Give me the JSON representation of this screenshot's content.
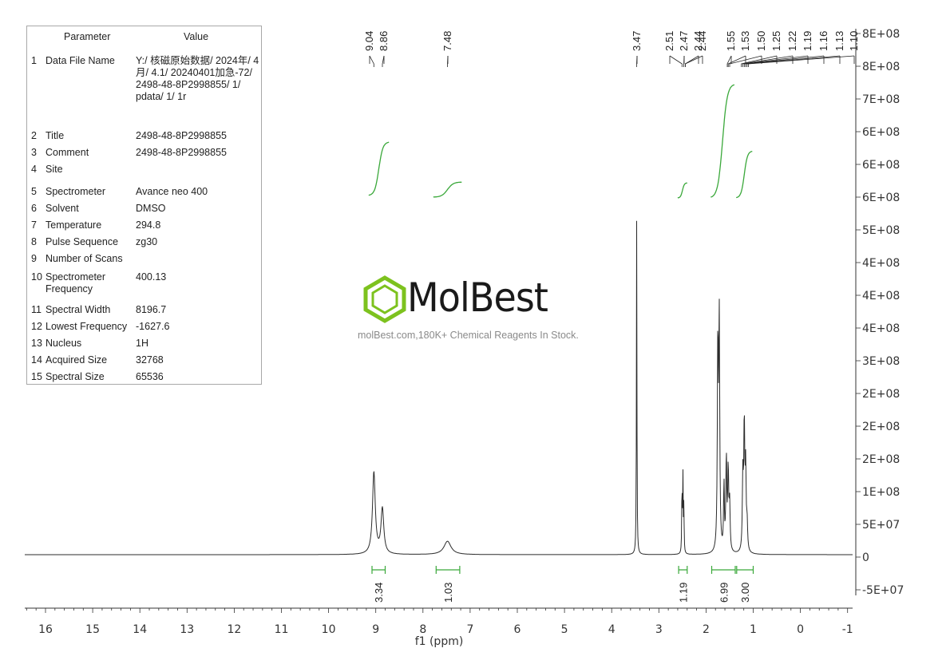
{
  "parameters": {
    "header_param": "Parameter",
    "header_value": "Value",
    "rows": [
      {
        "num": "1",
        "name": "Data File Name",
        "value": "Y:/ 核磁原始数据/ 2024年/ 4月/ 4.1/ 20240401加急-72/ 2498-48-8P2998855/ 1/ pdata/ 1/ 1r"
      },
      {
        "num": "2",
        "name": "Title",
        "value": "2498-48-8P2998855"
      },
      {
        "num": "3",
        "name": "Comment",
        "value": "2498-48-8P2998855"
      },
      {
        "num": "4",
        "name": "Site",
        "value": ""
      },
      {
        "num": "5",
        "name": "Spectrometer",
        "value": "Avance neo 400"
      },
      {
        "num": "6",
        "name": "Solvent",
        "value": "DMSO"
      },
      {
        "num": "7",
        "name": "Temperature",
        "value": "294.8"
      },
      {
        "num": "8",
        "name": "Pulse Sequence",
        "value": "zg30"
      },
      {
        "num": "9",
        "name": "Number of Scans",
        "value": ""
      },
      {
        "num": "10",
        "name": "Spectrometer Frequency",
        "value": "400.13"
      },
      {
        "num": "11",
        "name": "Spectral Width",
        "value": "8196.7"
      },
      {
        "num": "12",
        "name": "Lowest Frequency",
        "value": "-1627.6"
      },
      {
        "num": "13",
        "name": "Nucleus",
        "value": "1H"
      },
      {
        "num": "14",
        "name": "Acquired Size",
        "value": "32768"
      },
      {
        "num": "15",
        "name": "Spectral Size",
        "value": "65536"
      }
    ]
  },
  "watermark": {
    "brand": "MolBest",
    "tagline": "molBest.com,180K+ Chemical Reagents In Stock."
  },
  "colors": {
    "spectrum": "#2b2b2b",
    "integral": "#3aa83a",
    "axis": "#333333",
    "logo_green": "#7dc21e"
  },
  "chart_data": {
    "type": "line",
    "xlabel": "f1 (ppm)",
    "ylabel": "",
    "x_reversed": true,
    "xlim": [
      16.5,
      -1.0
    ],
    "x_ticks": [
      16,
      15,
      14,
      13,
      12,
      11,
      10,
      9,
      8,
      7,
      6,
      5,
      4,
      3,
      2,
      1,
      0,
      -1
    ],
    "y_ticks": [
      "8E+08",
      "8E+08",
      "7E+08",
      "6E+08",
      "6E+08",
      "6E+08",
      "5E+08",
      "4E+08",
      "4E+08",
      "4E+08",
      "3E+08",
      "2E+08",
      "2E+08",
      "2E+08",
      "1E+08",
      "5E+07",
      "0",
      "-5E+07"
    ],
    "peak_labels": [
      "9.04",
      "8.86",
      "7.48",
      "3.47",
      "2.51",
      "2.47",
      "2.44",
      "2.44",
      "1.55",
      "1.53",
      "1.50",
      "1.25",
      "1.22",
      "1.19",
      "1.16",
      "1.13",
      "1.10"
    ],
    "integrals": [
      {
        "from": 9.08,
        "to": 8.8,
        "value": "3.34"
      },
      {
        "from": 7.72,
        "to": 7.22,
        "value": "1.03"
      },
      {
        "from": 2.58,
        "to": 2.4,
        "value": "1.19"
      },
      {
        "from": 1.88,
        "to": 1.38,
        "value": "6.99"
      },
      {
        "from": 1.35,
        "to": 1.0,
        "value": "3.00"
      }
    ],
    "peaks": [
      {
        "ppm": 9.04,
        "height": 0.245,
        "width": 0.035
      },
      {
        "ppm": 8.86,
        "height": 0.135,
        "width": 0.035
      },
      {
        "ppm": 7.48,
        "height": 0.04,
        "width": 0.09
      },
      {
        "ppm": 3.47,
        "height": 1.0,
        "width": 0.006
      },
      {
        "ppm": 2.51,
        "height": 0.22,
        "width": 0.006
      },
      {
        "ppm": 2.49,
        "height": 0.23,
        "width": 0.006
      },
      {
        "ppm": 2.47,
        "height": 0.15,
        "width": 0.006
      },
      {
        "ppm": 1.75,
        "height": 0.62,
        "width": 0.012
      },
      {
        "ppm": 1.72,
        "height": 0.68,
        "width": 0.012
      },
      {
        "ppm": 1.62,
        "height": 0.2,
        "width": 0.01
      },
      {
        "ppm": 1.57,
        "height": 0.28,
        "width": 0.012
      },
      {
        "ppm": 1.53,
        "height": 0.24,
        "width": 0.012
      },
      {
        "ppm": 1.5,
        "height": 0.14,
        "width": 0.012
      },
      {
        "ppm": 1.22,
        "height": 0.22,
        "width": 0.012
      },
      {
        "ppm": 1.19,
        "height": 0.38,
        "width": 0.012
      },
      {
        "ppm": 1.16,
        "height": 0.24,
        "width": 0.012
      },
      {
        "ppm": 1.13,
        "height": 0.08,
        "width": 0.012
      }
    ],
    "integral_curves": [
      {
        "from": 9.15,
        "to": 8.72,
        "rise": 0.16
      },
      {
        "from": 7.78,
        "to": 7.18,
        "rise": 0.045
      },
      {
        "from": 2.6,
        "to": 2.4,
        "rise": 0.045
      },
      {
        "from": 1.9,
        "to": 1.4,
        "rise": 0.34
      },
      {
        "from": 1.36,
        "to": 1.02,
        "rise": 0.14
      }
    ]
  }
}
